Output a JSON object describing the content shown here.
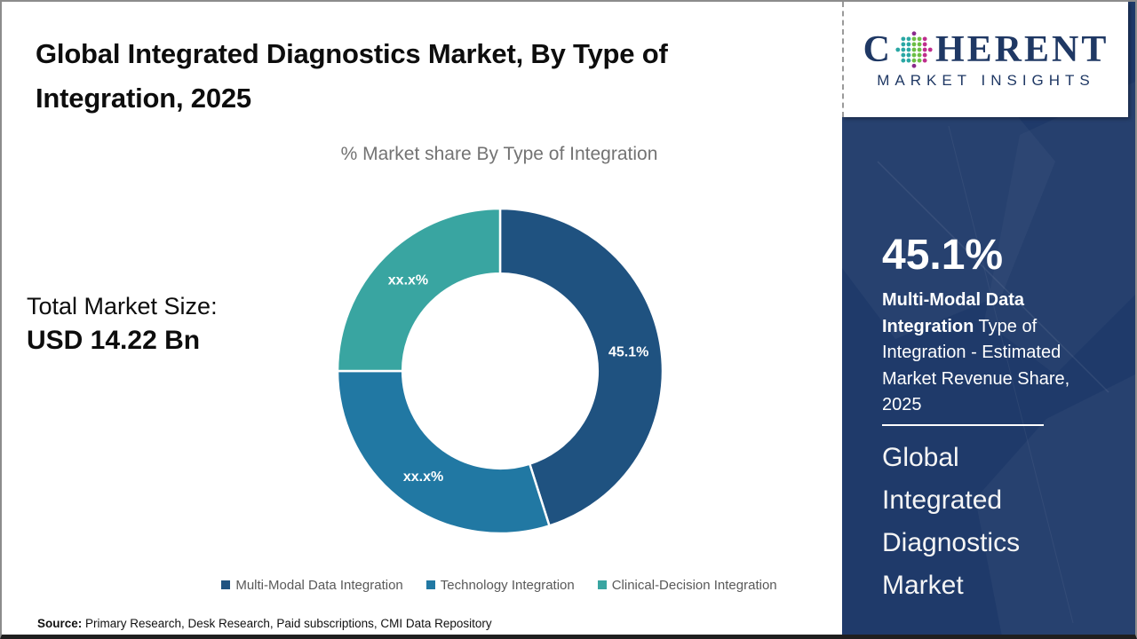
{
  "title": "Global Integrated Diagnostics Market, By Type of Integration, 2025",
  "subtitle": "% Market share By Type of Integration",
  "total_market": {
    "label": "Total Market Size:",
    "value": "USD 14.22 Bn"
  },
  "source": {
    "label": "Source:",
    "text": " Primary Research, Desk Research, Paid subscriptions, CMI Data Repository"
  },
  "logo": {
    "word_start": "C",
    "word_end": "HERENT",
    "subline": "MARKET INSIGHTS",
    "text_color": "#1f3864",
    "dot_colors": {
      "teal": "#2aa7a4",
      "green": "#6cbe45",
      "magenta": "#bf2d8d",
      "purple": "#8a2a8d"
    }
  },
  "sidebar": {
    "background": "#1f3a6a",
    "headline_value": "45.1%",
    "headline_bold": "Multi-Modal Data Integration",
    "headline_rest": " Type of Integration - Estimated Market Revenue Share, 2025",
    "footer_lines": [
      "Global",
      "Integrated",
      "Diagnostics",
      "Market"
    ]
  },
  "chart_data": {
    "type": "pie",
    "variant": "donut",
    "title": "% Market share By Type of Integration",
    "start_angle_deg": 0,
    "direction": "clockwise",
    "inner_radius_ratio": 0.6,
    "legend_position": "bottom",
    "segments": [
      {
        "name": "Multi-Modal Data Integration",
        "value": 45.1,
        "label": "45.1%",
        "color": "#1f5280"
      },
      {
        "name": "Technology Integration",
        "value": 29.9,
        "label": "xx.x%",
        "color": "#2178a3"
      },
      {
        "name": "Clinical-Decision Integration",
        "value": 25.0,
        "label": "xx.x%",
        "color": "#39a5a1"
      }
    ]
  }
}
